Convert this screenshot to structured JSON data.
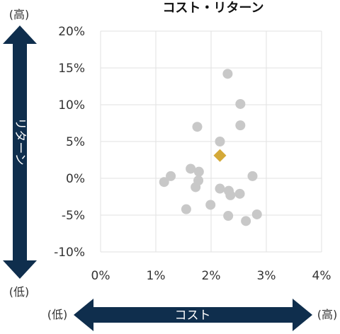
{
  "chart_data": {
    "type": "scatter",
    "title": "コスト・リターン",
    "xlabel": "コスト",
    "ylabel": "リターン",
    "x_low_label": "(低)",
    "x_high_label": "(高)",
    "y_high_label": "(高)",
    "y_low_label": "(低)",
    "xlim": [
      0,
      4
    ],
    "ylim": [
      -10,
      20
    ],
    "x_ticks": [
      0,
      1,
      2,
      3,
      4
    ],
    "y_ticks": [
      -10,
      -5,
      0,
      5,
      10,
      15,
      20
    ],
    "x_tick_labels": [
      "0%",
      "1%",
      "2%",
      "3%",
      "4%"
    ],
    "y_tick_labels": [
      "-10%",
      "-5%",
      "0%",
      "5%",
      "10%",
      "15%",
      "20%"
    ],
    "grid": true,
    "series": [
      {
        "color": "#c8c8c8",
        "marker": "circle",
        "points": [
          [
            2.3,
            14.2
          ],
          [
            2.53,
            10.1
          ],
          [
            2.53,
            7.2
          ],
          [
            1.75,
            7.0
          ],
          [
            2.16,
            5.0
          ],
          [
            1.63,
            1.3
          ],
          [
            1.78,
            0.9
          ],
          [
            1.27,
            0.3
          ],
          [
            1.15,
            -0.5
          ],
          [
            1.77,
            -0.3
          ],
          [
            1.72,
            -1.2
          ],
          [
            2.16,
            -1.4
          ],
          [
            2.32,
            -1.7
          ],
          [
            2.35,
            -2.3
          ],
          [
            2.52,
            -2.1
          ],
          [
            2.75,
            0.3
          ],
          [
            1.55,
            -4.2
          ],
          [
            1.99,
            -3.6
          ],
          [
            2.31,
            -5.1
          ],
          [
            2.83,
            -4.9
          ],
          [
            2.63,
            -5.8
          ]
        ]
      },
      {
        "color": "#d4a938",
        "marker": "diamond",
        "points": [
          [
            2.16,
            3.1
          ]
        ]
      }
    ]
  },
  "colors": {
    "arrow": "#0f2e4d",
    "grid": "#e2e2e2"
  }
}
